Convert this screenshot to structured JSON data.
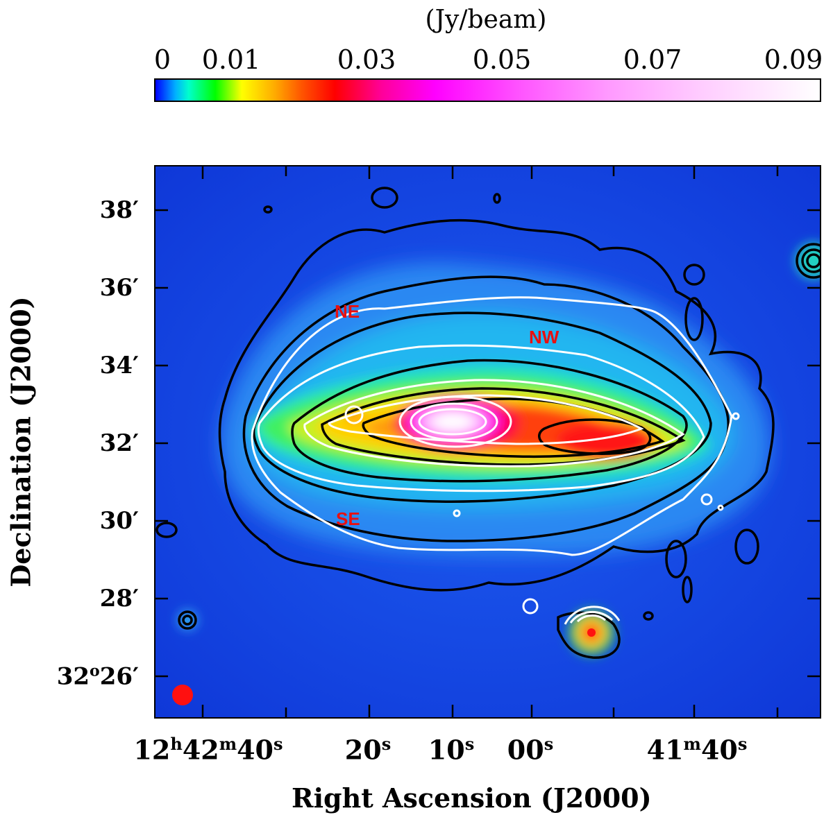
{
  "colorbar": {
    "title": "(Jy/beam)",
    "ticks": [
      "0",
      "0.01",
      "0.03",
      "0.05",
      "0.07",
      "0.09"
    ]
  },
  "axes": {
    "xlabel": "Right Ascension (J2000)",
    "ylabel": "Declination    (J2000)",
    "y_ticks": [
      "38′",
      "36′",
      "34′",
      "32′",
      "30′",
      "28′"
    ],
    "y_tick_last": {
      "deg": "32",
      "sup": "o",
      "min": "26′"
    },
    "x_ticks": {
      "t1": {
        "h": "12",
        "hs": "h",
        "m": "42",
        "ms": "m",
        "s": "40",
        "ss": "s"
      },
      "t2": {
        "s": "20",
        "ss": "s"
      },
      "t3": {
        "s": "10",
        "ss": "s"
      },
      "t4": {
        "s": "00",
        "ss": "s"
      },
      "t5": {
        "m": "41",
        "ms": "m",
        "s": "40",
        "ss": "s"
      }
    }
  },
  "regions": {
    "ne": "NE",
    "nw": "NW",
    "se": "SE"
  },
  "colors": {
    "background": "#1848e8",
    "region_label": "#e81010",
    "beam": "#ff1010"
  }
}
